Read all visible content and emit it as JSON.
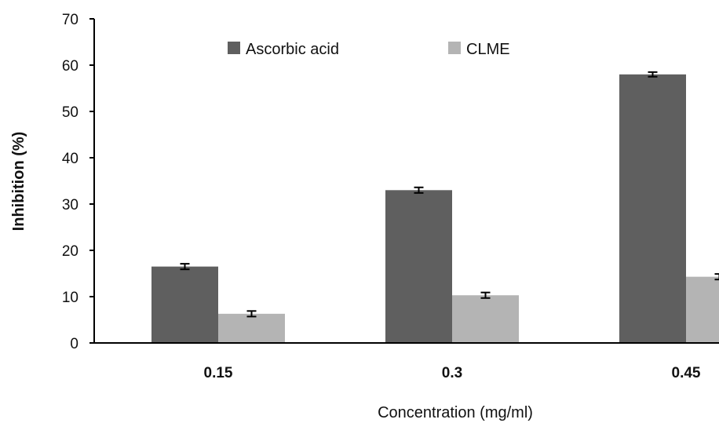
{
  "chart_data": {
    "type": "bar",
    "title": "",
    "xlabel": "Concentration (mg/ml)",
    "ylabel": "Inhibition (%)",
    "categories": [
      "0.15",
      "0.3",
      "0.45"
    ],
    "series": [
      {
        "name": "Ascorbic acid",
        "values": [
          16.5,
          33.0,
          58.0
        ],
        "errors": [
          0.6,
          0.6,
          0.5
        ],
        "color": "#5f5f5f"
      },
      {
        "name": "CLME",
        "values": [
          6.3,
          10.3,
          14.3
        ],
        "errors": [
          0.6,
          0.6,
          0.6
        ],
        "color": "#b4b4b4"
      }
    ],
    "ylim": [
      0,
      70
    ],
    "yticks": [
      0,
      10,
      20,
      30,
      40,
      50,
      60,
      70
    ],
    "grid": false,
    "legend": "top-center"
  }
}
